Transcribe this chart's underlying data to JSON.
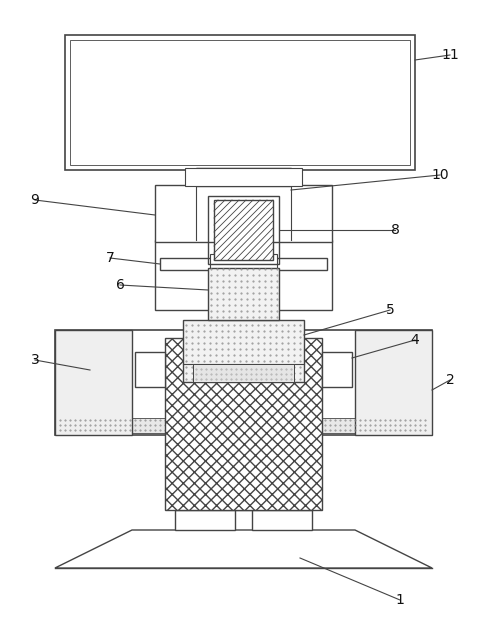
{
  "background_color": "#ffffff",
  "line_color": "#444444",
  "lw": 1.0,
  "fig_width": 4.87,
  "fig_height": 6.19,
  "dpi": 100
}
